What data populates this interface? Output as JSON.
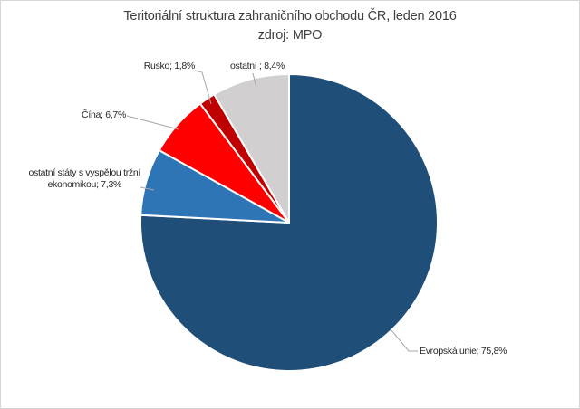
{
  "chart": {
    "title": "Teritoriální struktura zahraničního obchodu ČR, leden 2016",
    "subtitle": "zdroj: MPO"
  },
  "chart_data": {
    "type": "pie",
    "title": "Teritoriální struktura zahraničního obchodu ČR, leden 2016",
    "subtitle": "zdroj: MPO",
    "unit": "%",
    "start_angle_deg": 0,
    "direction": "clockwise",
    "legend_position": "none",
    "colors": {
      "evropska-unie": "#1F4E79",
      "ostatni-staty-vyspela-trzni": "#2E75B6",
      "cina": "#FF0000",
      "rusko": "#C00000",
      "ostatni": "#D1CFCF",
      "leader_line": "#A6A6A6",
      "slice_border": "#FFFFFF"
    },
    "slices": [
      {
        "id": "evropska-unie",
        "label": "Evropská unie",
        "value": 75.8,
        "display": "Evropská unie; 75,8%",
        "color": "#1F4E79"
      },
      {
        "id": "ostatni-staty-vyspela-trzni",
        "label": "ostatní státy s vyspělou tržní ekonomikou",
        "value": 7.3,
        "display_lines": [
          "ostatní státy s vyspělou tržní",
          "ekonomikou; 7,3%"
        ],
        "color": "#2E75B6"
      },
      {
        "id": "cina",
        "label": "Čína",
        "value": 6.7,
        "display": "Čína; 6,7%",
        "color": "#FF0000"
      },
      {
        "id": "rusko",
        "label": "Rusko",
        "value": 1.8,
        "display": "Rusko; 1,8%",
        "color": "#C00000"
      },
      {
        "id": "ostatni",
        "label": "ostatní",
        "value": 8.4,
        "display": "ostatní ; 8,4%",
        "color": "#D1CFCF"
      }
    ]
  }
}
